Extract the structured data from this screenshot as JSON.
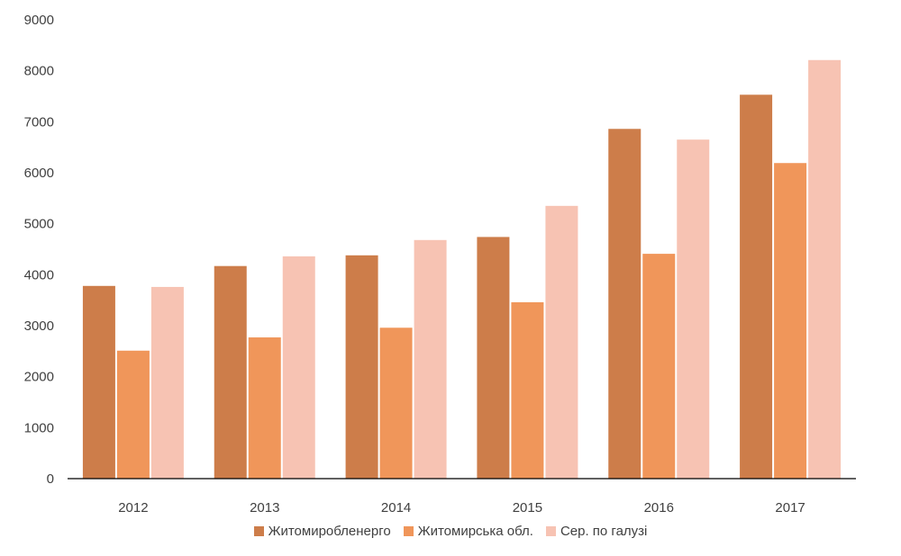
{
  "chart_data": {
    "type": "bar",
    "categories": [
      "2012",
      "2013",
      "2014",
      "2015",
      "2016",
      "2017"
    ],
    "series": [
      {
        "name": "Житомиробленерго",
        "color": "#cd7d4a",
        "values": [
          3780,
          4170,
          4380,
          4740,
          6860,
          7530
        ]
      },
      {
        "name": "Житомирська обл.",
        "color": "#f0965a",
        "values": [
          2510,
          2770,
          2960,
          3460,
          4410,
          6190
        ]
      },
      {
        "name": "Сер. по галузі",
        "color": "#f7c3b3",
        "values": [
          3760,
          4360,
          4680,
          5350,
          6650,
          8210
        ]
      }
    ],
    "yticks": [
      "0",
      "1000",
      "2000",
      "3000",
      "4000",
      "5000",
      "6000",
      "7000",
      "8000",
      "9000"
    ],
    "ylim": [
      0,
      9000
    ],
    "grid": false,
    "legend_position": "bottom"
  }
}
